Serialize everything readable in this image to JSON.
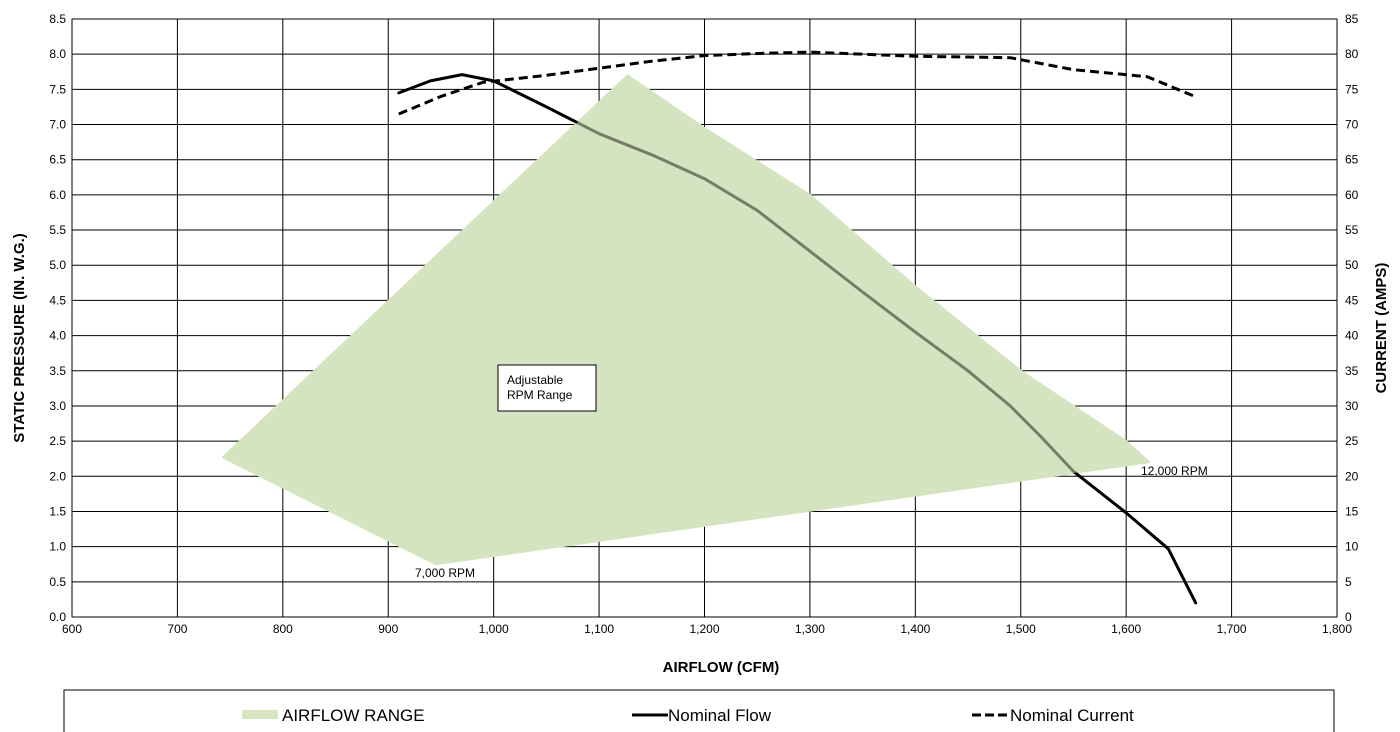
{
  "chart_data": {
    "type": "line",
    "x_axis": {
      "title": "AIRFLOW (CFM)",
      "range": [
        600,
        1800
      ],
      "ticks": [
        600,
        700,
        800,
        900,
        1000,
        1100,
        1200,
        1300,
        1400,
        1500,
        1600,
        1700,
        1800
      ],
      "tick_labels": [
        "600",
        "700",
        "800",
        "900",
        "1,000",
        "1,100",
        "1,200",
        "1,300",
        "1,400",
        "1,500",
        "1,600",
        "1,700",
        "1,800"
      ]
    },
    "y_axis_left": {
      "title": "STATIC  PRESSURE  (IN. W.G.)",
      "range": [
        0,
        8.5
      ],
      "ticks": [
        0,
        0.5,
        1,
        1.5,
        2,
        2.5,
        3,
        3.5,
        4,
        4.5,
        5,
        5.5,
        6,
        6.5,
        7,
        7.5,
        8,
        8.5
      ],
      "tick_labels": [
        "0.0",
        "0.5",
        "1.0",
        "1.5",
        "2.0",
        "2.5",
        "3.0",
        "3.5",
        "4.0",
        "4.5",
        "5.0",
        "5.5",
        "6.0",
        "6.5",
        "7.0",
        "7.5",
        "8.0",
        "8.5"
      ]
    },
    "y_axis_right": {
      "title": "CURRENT  (AMPS)",
      "range": [
        0,
        85
      ],
      "ticks": [
        0,
        5,
        10,
        15,
        20,
        25,
        30,
        35,
        40,
        45,
        50,
        55,
        60,
        65,
        70,
        75,
        80,
        85
      ],
      "tick_labels": [
        "0",
        "5",
        "10",
        "15",
        "20",
        "25",
        "30",
        "35",
        "40",
        "45",
        "50",
        "55",
        "60",
        "65",
        "70",
        "75",
        "80",
        "85"
      ]
    },
    "grid": true,
    "legend_position": "bottom",
    "series": [
      {
        "name": "AIRFLOW RANGE",
        "kind": "area",
        "axis": "left",
        "color": "#d6e4c0",
        "points": [
          [
            743,
            2.27
          ],
          [
            945,
            0.75
          ],
          [
            1622,
            2.2
          ],
          [
            1600,
            2.5
          ],
          [
            1500,
            3.5
          ],
          [
            1400,
            4.7
          ],
          [
            1300,
            6.0
          ],
          [
            1200,
            6.95
          ],
          [
            1127,
            7.7
          ]
        ]
      },
      {
        "name": "Nominal Flow",
        "kind": "line",
        "axis": "left",
        "color": "#000000",
        "dash": "solid",
        "points": [
          [
            910,
            7.45
          ],
          [
            940,
            7.62
          ],
          [
            970,
            7.71
          ],
          [
            1000,
            7.62
          ],
          [
            1050,
            7.25
          ],
          [
            1100,
            6.87
          ],
          [
            1150,
            6.57
          ],
          [
            1200,
            6.23
          ],
          [
            1250,
            5.78
          ],
          [
            1300,
            5.2
          ],
          [
            1350,
            4.62
          ],
          [
            1400,
            4.05
          ],
          [
            1450,
            3.5
          ],
          [
            1490,
            3.0
          ],
          [
            1520,
            2.55
          ],
          [
            1550,
            2.07
          ],
          [
            1600,
            1.48
          ],
          [
            1640,
            0.97
          ],
          [
            1666,
            0.2
          ]
        ]
      },
      {
        "name": "Nominal Current",
        "kind": "line",
        "axis": "right",
        "color": "#000000",
        "dash": "dashed",
        "points": [
          [
            910,
            71.5
          ],
          [
            950,
            74.0
          ],
          [
            990,
            76.0
          ],
          [
            1050,
            77.0
          ],
          [
            1100,
            78.0
          ],
          [
            1150,
            79.0
          ],
          [
            1200,
            79.8
          ],
          [
            1250,
            80.1
          ],
          [
            1300,
            80.3
          ],
          [
            1350,
            80.0
          ],
          [
            1400,
            79.7
          ],
          [
            1450,
            79.6
          ],
          [
            1490,
            79.5
          ],
          [
            1550,
            77.8
          ],
          [
            1620,
            76.8
          ],
          [
            1665,
            74.0
          ]
        ]
      }
    ],
    "annotations": [
      {
        "text": "Adjustable\nRPM Range"
      },
      {
        "text": "7,000 RPM"
      },
      {
        "text": "12,000 RPM"
      }
    ]
  }
}
